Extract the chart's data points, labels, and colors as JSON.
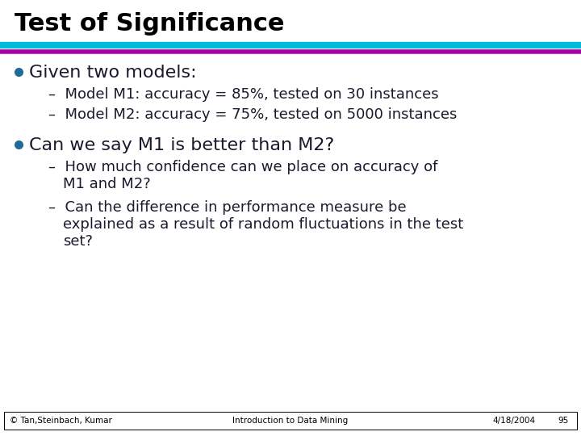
{
  "title": "Test of Significance",
  "title_fontsize": 22,
  "title_fontweight": "bold",
  "title_color": "#000000",
  "bg_color": "#ffffff",
  "line1_color": "#00BBDD",
  "line2_color": "#AA00AA",
  "bullet_color": "#1F6B99",
  "text_color": "#1a1a2e",
  "bullet1_text": "Given two models:",
  "bullet1_fontsize": 16,
  "sub_bullet1a": "Model M1: accuracy = 85%, tested on 30 instances",
  "sub_bullet1b": "Model M2: accuracy = 75%, tested on 5000 instances",
  "sub_fontsize": 13,
  "bullet2_text": "Can we say M1 is better than M2?",
  "bullet2_fontsize": 16,
  "sub_bullet2a1": "How much confidence can we place on accuracy of",
  "sub_bullet2a2": "M1 and M2?",
  "sub_bullet2b1": "Can the difference in performance measure be",
  "sub_bullet2b2": "explained as a result of random fluctuations in the test",
  "sub_bullet2b3": "set?",
  "footer_left": "© Tan,Steinbach, Kumar",
  "footer_center": "Introduction to Data Mining",
  "footer_right": "4/18/2004",
  "footer_page": "95",
  "footer_fontsize": 7.5,
  "footer_line_color": "#000000"
}
